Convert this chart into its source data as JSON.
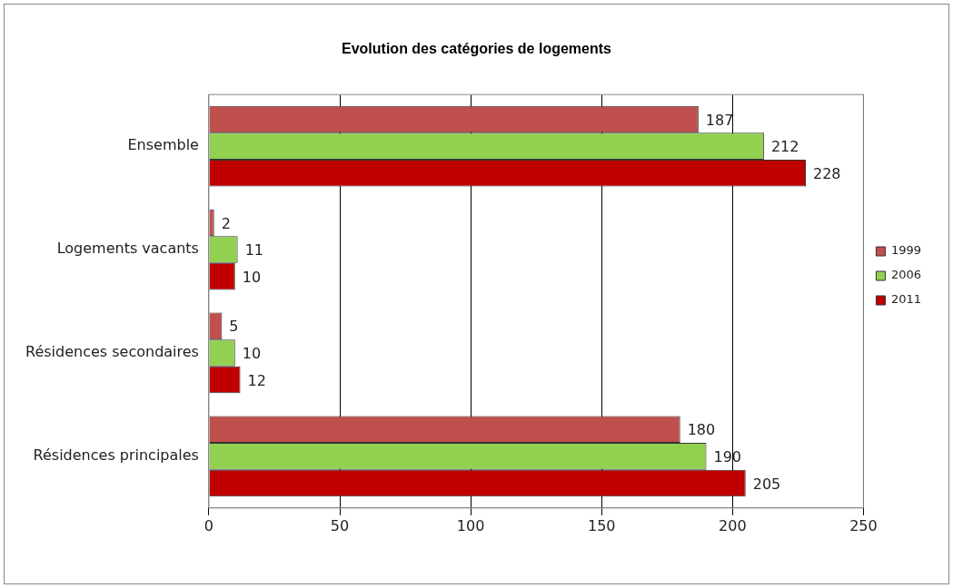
{
  "chart_data": {
    "type": "bar",
    "orientation": "horizontal",
    "title": "Evolution des catégories de logements",
    "categories": [
      "Ensemble",
      "Logements vacants",
      "Résidences secondaires",
      "Résidences principales"
    ],
    "series": [
      {
        "name": "1999",
        "color": "#c0504d",
        "values": [
          187,
          2,
          5,
          180
        ]
      },
      {
        "name": "2006",
        "color": "#92d050",
        "values": [
          212,
          11,
          10,
          190
        ]
      },
      {
        "name": "2011",
        "color": "#c00000",
        "values": [
          228,
          10,
          12,
          205
        ]
      }
    ],
    "xlim": [
      0,
      250
    ],
    "xticks": [
      0,
      50,
      100,
      150,
      200,
      250
    ],
    "grid": "x",
    "legend": "right",
    "data_labels": true
  }
}
